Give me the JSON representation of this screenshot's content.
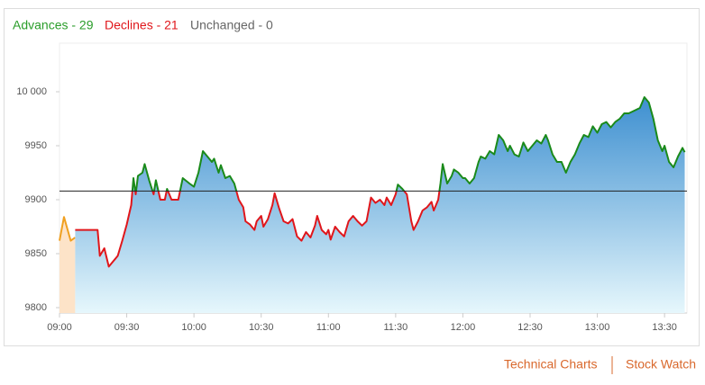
{
  "header": {
    "advances": "Advances - 29",
    "declines": "Declines - 21",
    "unchanged": "Unchanged - 0"
  },
  "chart_data": {
    "type": "line",
    "xlim": [
      "09:00",
      "13:40"
    ],
    "xticks": [
      "09:00",
      "09:30",
      "10:00",
      "10:30",
      "11:00",
      "11:30",
      "12:00",
      "12:30",
      "13:00",
      "13:30"
    ],
    "ylim": [
      9800,
      10045
    ],
    "yticks": [
      9800,
      9850,
      9900,
      9950,
      {
        "value": 10000,
        "label": "10 000"
      }
    ],
    "reference_line": 9908,
    "series": [
      {
        "color": "#f0a020",
        "fill": "#fde3c8",
        "x": [
          "09:00",
          "09:02",
          "09:05",
          "09:07"
        ],
        "values": [
          9862,
          9884,
          9862,
          9865
        ]
      },
      {
        "color_above": "#1a8a1a",
        "color_below": "#e0161b",
        "fill_top": "#3d8fd0",
        "fill_bottom": "#e6f7fc",
        "x": [
          "09:07",
          "09:15",
          "09:17",
          "09:18",
          "09:20",
          "09:22",
          "09:24",
          "09:26",
          "09:28",
          "09:30",
          "09:32",
          "09:33",
          "09:34",
          "09:35",
          "09:37",
          "09:38",
          "09:40",
          "09:42",
          "09:43",
          "09:45",
          "09:47",
          "09:48",
          "09:50",
          "09:53",
          "09:55",
          "09:58",
          "10:00",
          "10:02",
          "10:04",
          "10:06",
          "10:08",
          "10:09",
          "10:11",
          "10:12",
          "10:14",
          "10:16",
          "10:18",
          "10:20",
          "10:22",
          "10:23",
          "10:25",
          "10:27",
          "10:28",
          "10:30",
          "10:31",
          "10:33",
          "10:35",
          "10:36",
          "10:38",
          "10:40",
          "10:42",
          "10:44",
          "10:46",
          "10:48",
          "10:50",
          "10:52",
          "10:54",
          "10:55",
          "10:57",
          "10:59",
          "11:00",
          "11:01",
          "11:03",
          "11:05",
          "11:07",
          "11:09",
          "11:11",
          "11:13",
          "11:15",
          "11:17",
          "11:19",
          "11:21",
          "11:23",
          "11:25",
          "11:26",
          "11:28",
          "11:30",
          "11:31",
          "11:33",
          "11:35",
          "11:37",
          "11:38",
          "11:40",
          "11:42",
          "11:44",
          "11:46",
          "11:47",
          "11:49",
          "11:50",
          "11:51",
          "11:53",
          "11:55",
          "11:56",
          "11:58",
          "12:00",
          "12:01",
          "12:03",
          "12:05",
          "12:07",
          "12:08",
          "12:10",
          "12:12",
          "12:14",
          "12:16",
          "12:18",
          "12:20",
          "12:21",
          "12:23",
          "12:25",
          "12:27",
          "12:29",
          "12:31",
          "12:33",
          "12:35",
          "12:37",
          "12:38",
          "12:40",
          "12:42",
          "12:44",
          "12:46",
          "12:48",
          "12:50",
          "12:52",
          "12:54",
          "12:56",
          "12:58",
          "13:00",
          "13:02",
          "13:04",
          "13:06",
          "13:08",
          "13:10",
          "13:12",
          "13:14",
          "13:16",
          "13:19",
          "13:21",
          "13:23",
          "13:25",
          "13:27",
          "13:29",
          "13:30",
          "13:32",
          "13:34",
          "13:36",
          "13:38",
          "13:39"
        ],
        "values": [
          9872,
          9872,
          9872,
          9848,
          9855,
          9838,
          9843,
          9848,
          9862,
          9877,
          9895,
          9920,
          9905,
          9922,
          9925,
          9933,
          9918,
          9905,
          9918,
          9900,
          9900,
          9910,
          9900,
          9900,
          9920,
          9915,
          9912,
          9925,
          9945,
          9940,
          9935,
          9938,
          9925,
          9932,
          9920,
          9922,
          9915,
          9900,
          9893,
          9880,
          9877,
          9872,
          9880,
          9885,
          9875,
          9882,
          9895,
          9906,
          9892,
          9880,
          9878,
          9882,
          9866,
          9862,
          9870,
          9865,
          9876,
          9885,
          9872,
          9868,
          9872,
          9863,
          9875,
          9870,
          9866,
          9880,
          9885,
          9880,
          9876,
          9880,
          9902,
          9897,
          9900,
          9895,
          9902,
          9895,
          9905,
          9914,
          9910,
          9905,
          9880,
          9872,
          9880,
          9890,
          9893,
          9898,
          9890,
          9900,
          9915,
          9933,
          9915,
          9922,
          9928,
          9925,
          9920,
          9920,
          9915,
          9920,
          9935,
          9940,
          9938,
          9945,
          9942,
          9960,
          9955,
          9945,
          9950,
          9942,
          9940,
          9953,
          9945,
          9950,
          9955,
          9952,
          9960,
          9955,
          9942,
          9935,
          9935,
          9925,
          9935,
          9942,
          9952,
          9960,
          9958,
          9968,
          9962,
          9970,
          9972,
          9967,
          9972,
          9975,
          9980,
          9980,
          9982,
          9985,
          9995,
          9990,
          9975,
          9955,
          9945,
          9950,
          9935,
          9930,
          9940,
          9948,
          9944
        ]
      }
    ]
  },
  "footer": {
    "links": [
      "Technical Charts",
      "Stock Watch"
    ]
  }
}
